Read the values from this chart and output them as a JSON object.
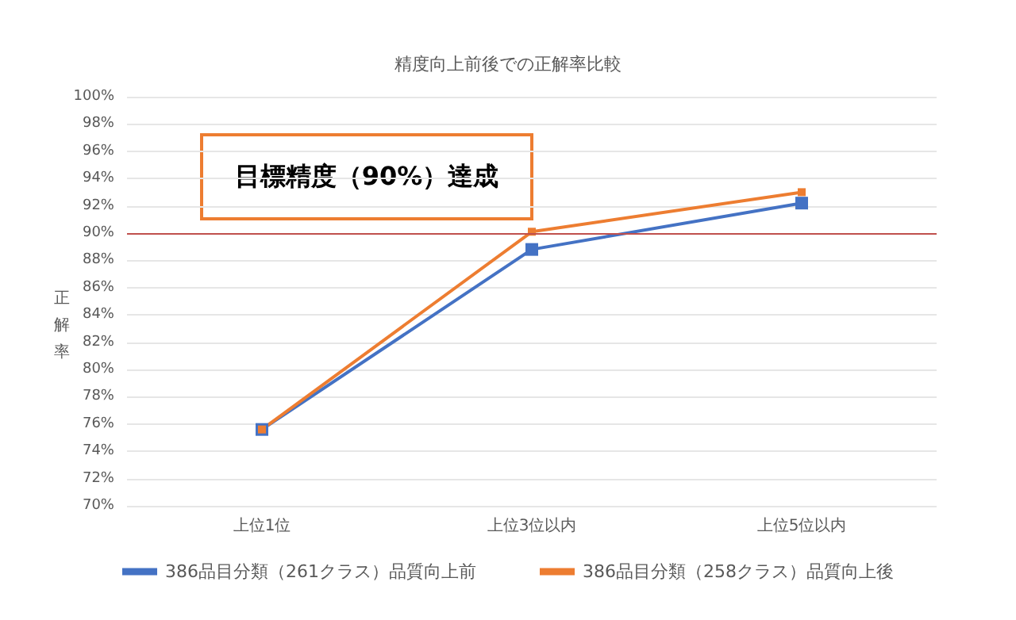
{
  "chart_data": {
    "type": "line",
    "title": "精度向上前後での正解率比較",
    "ylabel": "正解率",
    "categories": [
      "上位1位",
      "上位3位以内",
      "上位5位以内"
    ],
    "series": [
      {
        "name": "386品目分類（261クラス）品質向上前",
        "color": "#4472c4",
        "values": [
          75.6,
          88.8,
          92.2
        ]
      },
      {
        "name": "386品目分類（258クラス）品質向上後",
        "color": "#ed7d31",
        "values": [
          75.6,
          90.1,
          93.0
        ]
      }
    ],
    "ylim": [
      70,
      100
    ],
    "yticks": [
      {
        "value": 70,
        "label": "70%"
      },
      {
        "value": 72,
        "label": "72%"
      },
      {
        "value": 74,
        "label": "74%"
      },
      {
        "value": 76,
        "label": "76%"
      },
      {
        "value": 78,
        "label": "78%"
      },
      {
        "value": 80,
        "label": "80%"
      },
      {
        "value": 82,
        "label": "82%"
      },
      {
        "value": 84,
        "label": "84%"
      },
      {
        "value": 86,
        "label": "86%"
      },
      {
        "value": 88,
        "label": "88%"
      },
      {
        "value": 90,
        "label": "90%"
      },
      {
        "value": 92,
        "label": "92%"
      },
      {
        "value": 94,
        "label": "94%"
      },
      {
        "value": 96,
        "label": "96%"
      },
      {
        "value": 98,
        "label": "98%"
      },
      {
        "value": 100,
        "label": "100%"
      }
    ],
    "ref_lines": [
      {
        "axis": "y",
        "value": 90,
        "color": "#c0504d"
      }
    ],
    "annotations": [
      "目標精度（90%）達成"
    ],
    "grid": "y",
    "legend": "bottom",
    "marker": "square"
  }
}
